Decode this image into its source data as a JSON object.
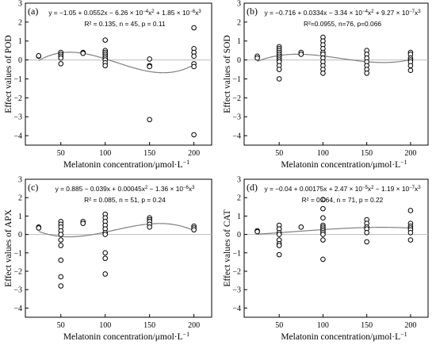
{
  "chart_data": [
    {
      "type": "scatter",
      "panel_label": "(a)",
      "ylabel": "Effect values of POD",
      "xlabel": "Melatonin concentration/μmol·L",
      "xlabel_sup": "−1",
      "xticks": [
        50,
        100,
        150,
        200
      ],
      "yticks": [
        -4,
        -3,
        -2,
        -1,
        0,
        1,
        2,
        3
      ],
      "xlim": [
        10,
        220
      ],
      "ylim": [
        -4.5,
        3
      ],
      "coef": [
        -1.05,
        0.0552,
        -0.000626,
        1.85e-06
      ],
      "equation": {
        "segs": [
          [
            "y = −1.05 + 0.0552x − 6.26 × 10",
            ""
          ],
          [
            "−4",
            "sup"
          ],
          [
            "x",
            ""
          ],
          [
            "2",
            "sup"
          ],
          [
            " + 1.85 × 10",
            ""
          ],
          [
            "−6",
            "sup"
          ],
          [
            "x",
            ""
          ],
          [
            "3",
            "sup"
          ]
        ],
        "stats": "R² = 0.135,  n = 45,  p = 0.11"
      },
      "points": [
        [
          25,
          0.2
        ],
        [
          25,
          0.22
        ],
        [
          50,
          0.4
        ],
        [
          50,
          0.3
        ],
        [
          50,
          0.2
        ],
        [
          50,
          0.1
        ],
        [
          50,
          -0.2
        ],
        [
          75,
          0.4
        ],
        [
          75,
          0.35
        ],
        [
          100,
          1.05
        ],
        [
          100,
          0.5
        ],
        [
          100,
          0.4
        ],
        [
          100,
          0.3
        ],
        [
          100,
          0.2
        ],
        [
          100,
          0.1
        ],
        [
          100,
          0.0
        ],
        [
          100,
          -0.15
        ],
        [
          100,
          -0.3
        ],
        [
          150,
          0.05
        ],
        [
          150,
          -0.3
        ],
        [
          150,
          -0.35
        ],
        [
          150,
          -3.15
        ],
        [
          200,
          1.7
        ],
        [
          200,
          0.6
        ],
        [
          200,
          0.4
        ],
        [
          200,
          0.2
        ],
        [
          200,
          -0.2
        ],
        [
          200,
          -0.35
        ],
        [
          200,
          -3.95
        ]
      ]
    },
    {
      "type": "scatter",
      "panel_label": "(b)",
      "ylabel": "Effect values of SOD",
      "xlabel": "Melatonin concentration/μmol·L",
      "xlabel_sup": "−1",
      "xticks": [
        50,
        100,
        150,
        200
      ],
      "yticks": [
        -4,
        -3,
        -2,
        -1,
        0,
        1,
        2,
        3
      ],
      "xlim": [
        10,
        220
      ],
      "ylim": [
        -4.5,
        3
      ],
      "coef": [
        -0.716,
        0.0334,
        -0.000334,
        9.27e-07
      ],
      "equation": {
        "segs": [
          [
            "y = −0.716 + 0.0334x − 3.34 × 10",
            ""
          ],
          [
            "−4",
            "sup"
          ],
          [
            "x",
            ""
          ],
          [
            "2",
            "sup"
          ],
          [
            " + 9.27 × 10",
            ""
          ],
          [
            "−7",
            "sup"
          ],
          [
            "x",
            ""
          ],
          [
            "3",
            "sup"
          ]
        ],
        "stats": "R²=0.0955,  n=76,  p=0.066"
      },
      "points": [
        [
          25,
          0.2
        ],
        [
          25,
          0.1
        ],
        [
          50,
          0.7
        ],
        [
          50,
          0.6
        ],
        [
          50,
          0.5
        ],
        [
          50,
          0.4
        ],
        [
          50,
          0.3
        ],
        [
          50,
          0.2
        ],
        [
          50,
          0.1
        ],
        [
          50,
          0.0
        ],
        [
          50,
          -0.1
        ],
        [
          50,
          -0.3
        ],
        [
          50,
          -0.5
        ],
        [
          50,
          -1.0
        ],
        [
          75,
          0.4
        ],
        [
          75,
          0.3
        ],
        [
          100,
          1.2
        ],
        [
          100,
          1.0
        ],
        [
          100,
          0.8
        ],
        [
          100,
          0.6
        ],
        [
          100,
          0.4
        ],
        [
          100,
          0.3
        ],
        [
          100,
          0.1
        ],
        [
          100,
          -0.1
        ],
        [
          100,
          -0.3
        ],
        [
          100,
          -0.5
        ],
        [
          100,
          -0.7
        ],
        [
          150,
          0.5
        ],
        [
          150,
          0.3
        ],
        [
          150,
          0.1
        ],
        [
          150,
          -0.1
        ],
        [
          150,
          -0.3
        ],
        [
          150,
          -0.5
        ],
        [
          150,
          -0.7
        ],
        [
          200,
          0.4
        ],
        [
          200,
          0.3
        ],
        [
          200,
          0.1
        ],
        [
          200,
          0.0
        ],
        [
          200,
          -0.1
        ],
        [
          200,
          -0.3
        ],
        [
          200,
          -0.55
        ]
      ]
    },
    {
      "type": "scatter",
      "panel_label": "(c)",
      "ylabel": "Effect values of APX",
      "xlabel": "Melatonin concentration/μmol·L",
      "xlabel_sup": "−1",
      "xticks": [
        50,
        100,
        150,
        200
      ],
      "yticks": [
        -4,
        -3,
        -2,
        -1,
        0,
        1,
        2,
        3
      ],
      "xlim": [
        10,
        220
      ],
      "ylim": [
        -4.5,
        3
      ],
      "coef": [
        0.885,
        -0.039,
        0.00045,
        -1.36e-06
      ],
      "equation": {
        "segs": [
          [
            "y = 0.885 − 0.039x + 0.00045x",
            ""
          ],
          [
            "2",
            "sup"
          ],
          [
            " − 1.36 × 10",
            ""
          ],
          [
            "−6",
            "sup"
          ],
          [
            "x",
            ""
          ],
          [
            "3",
            "sup"
          ]
        ],
        "stats": "R² = 0.085,  n = 51,  p = 0.24"
      },
      "points": [
        [
          25,
          0.4
        ],
        [
          25,
          0.35
        ],
        [
          50,
          0.7
        ],
        [
          50,
          0.55
        ],
        [
          50,
          0.4
        ],
        [
          50,
          0.2
        ],
        [
          50,
          0.0
        ],
        [
          50,
          -0.3
        ],
        [
          50,
          -0.6
        ],
        [
          50,
          -1.4
        ],
        [
          50,
          -2.3
        ],
        [
          50,
          -2.8
        ],
        [
          75,
          0.7
        ],
        [
          75,
          0.6
        ],
        [
          100,
          1.1
        ],
        [
          100,
          0.9
        ],
        [
          100,
          0.7
        ],
        [
          100,
          0.5
        ],
        [
          100,
          0.3
        ],
        [
          100,
          0.1
        ],
        [
          100,
          0.0
        ],
        [
          100,
          -1.0
        ],
        [
          100,
          -1.3
        ],
        [
          100,
          -2.15
        ],
        [
          150,
          0.9
        ],
        [
          150,
          0.8
        ],
        [
          150,
          0.7
        ],
        [
          150,
          0.55
        ],
        [
          150,
          0.4
        ],
        [
          200,
          0.45
        ],
        [
          200,
          0.35
        ],
        [
          200,
          0.25
        ]
      ]
    },
    {
      "type": "scatter",
      "panel_label": "(d)",
      "ylabel": "Effect values of CAT",
      "xlabel": "Melatonin concentration/μmol·L",
      "xlabel_sup": "−1",
      "xticks": [
        50,
        100,
        150,
        200
      ],
      "yticks": [
        -4,
        -3,
        -2,
        -1,
        0,
        1,
        2,
        3
      ],
      "xlim": [
        10,
        220
      ],
      "ylim": [
        -4.5,
        3
      ],
      "coef": [
        -0.04,
        0.00175,
        2.47e-05,
        -1.19e-07
      ],
      "equation": {
        "segs": [
          [
            "y = −0.04 + 0.00175x + 2.47 × 10",
            ""
          ],
          [
            "−5",
            "sup"
          ],
          [
            "x",
            ""
          ],
          [
            "2",
            "sup"
          ],
          [
            " − 1.19 × 10",
            ""
          ],
          [
            "−7",
            "sup"
          ],
          [
            "x",
            ""
          ],
          [
            "3",
            "sup"
          ]
        ],
        "stats": "R² = 0.064,  n = 71,  p = 0.22"
      },
      "points": [
        [
          25,
          0.2
        ],
        [
          25,
          0.15
        ],
        [
          50,
          0.5
        ],
        [
          50,
          0.3
        ],
        [
          50,
          0.1
        ],
        [
          50,
          0.0
        ],
        [
          50,
          -0.3
        ],
        [
          50,
          -0.5
        ],
        [
          50,
          -0.6
        ],
        [
          50,
          -1.1
        ],
        [
          75,
          0.4
        ],
        [
          100,
          1.9
        ],
        [
          100,
          1.4
        ],
        [
          100,
          0.9
        ],
        [
          100,
          0.5
        ],
        [
          100,
          0.4
        ],
        [
          100,
          0.3
        ],
        [
          100,
          0.2
        ],
        [
          100,
          0.1
        ],
        [
          100,
          0.0
        ],
        [
          100,
          -0.3
        ],
        [
          100,
          -1.35
        ],
        [
          150,
          0.8
        ],
        [
          150,
          0.6
        ],
        [
          150,
          0.4
        ],
        [
          150,
          0.3
        ],
        [
          150,
          0.1
        ],
        [
          150,
          -0.4
        ],
        [
          200,
          1.3
        ],
        [
          200,
          0.6
        ],
        [
          200,
          0.45
        ],
        [
          200,
          0.35
        ],
        [
          200,
          0.25
        ],
        [
          200,
          0.1
        ],
        [
          200,
          -0.3
        ]
      ]
    }
  ]
}
